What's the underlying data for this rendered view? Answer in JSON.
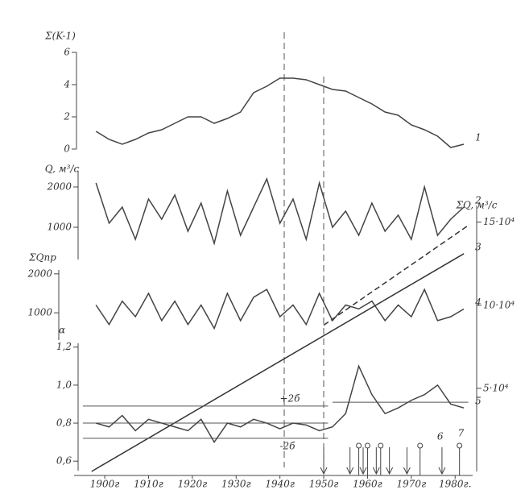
{
  "chart_data": [
    {
      "type": "line",
      "ylabel": "Σ(K-1)",
      "ylim": [
        0,
        6
      ],
      "yticks": [
        0,
        2,
        4,
        6
      ],
      "x": [
        1898,
        1901,
        1904,
        1907,
        1910,
        1913,
        1916,
        1919,
        1922,
        1925,
        1928,
        1931,
        1934,
        1937,
        1940,
        1943,
        1946,
        1949,
        1952,
        1955,
        1958,
        1961,
        1964,
        1967,
        1970,
        1973,
        1976,
        1979,
        1982
      ],
      "series": [
        {
          "name": "1",
          "color": "#444444",
          "values": [
            1.1,
            0.6,
            0.3,
            0.6,
            1.0,
            1.2,
            1.6,
            2.0,
            2.0,
            1.6,
            1.9,
            2.3,
            3.5,
            3.9,
            4.4,
            4.4,
            4.3,
            4.0,
            3.7,
            3.6,
            3.2,
            2.8,
            2.3,
            2.1,
            1.5,
            1.2,
            0.8,
            0.1,
            0.3
          ]
        }
      ]
    },
    {
      "type": "line",
      "ylabel": "Q, м³/с",
      "ylim": [
        200,
        2400
      ],
      "yticks": [
        1000,
        2000
      ],
      "x": [
        1898,
        1901,
        1904,
        1907,
        1910,
        1913,
        1916,
        1919,
        1922,
        1925,
        1928,
        1931,
        1934,
        1937,
        1940,
        1943,
        1946,
        1949,
        1952,
        1955,
        1958,
        1961,
        1964,
        1967,
        1970,
        1973,
        1976,
        1979,
        1982
      ],
      "series": [
        {
          "name": "2",
          "color": "#444444",
          "values": [
            2100,
            1100,
            1500,
            700,
            1700,
            1200,
            1800,
            900,
            1600,
            600,
            1900,
            800,
            1500,
            2200,
            1100,
            1700,
            700,
            2100,
            1000,
            1400,
            800,
            1600,
            900,
            1300,
            700,
            2000,
            800,
            1200,
            1500
          ]
        }
      ]
    },
    {
      "type": "line",
      "ylabel": "ΣQ, м³/с",
      "ylim": [
        0,
        160000
      ],
      "yticks": [
        {
          "value": 50000,
          "label": "5·10⁴"
        },
        {
          "value": 100000,
          "label": "10·10⁴"
        },
        {
          "value": 150000,
          "label": "15·10⁴"
        }
      ],
      "series": [
        {
          "name": "3",
          "color": "#333333",
          "x": [
            1897,
            1982
          ],
          "values": [
            0,
            131000
          ]
        },
        {
          "color": "#333333",
          "dashed": true,
          "x": [
            1950,
            1983
          ],
          "values": [
            88000,
            148000
          ]
        }
      ]
    },
    {
      "type": "line",
      "ylabel": "ΣQпр",
      "ylim": [
        300,
        2100
      ],
      "yticks": [
        1000,
        2000
      ],
      "x": [
        1898,
        1901,
        1904,
        1907,
        1910,
        1913,
        1916,
        1919,
        1922,
        1925,
        1928,
        1931,
        1934,
        1937,
        1940,
        1943,
        1946,
        1949,
        1952,
        1955,
        1958,
        1961,
        1964,
        1967,
        1970,
        1973,
        1976,
        1979,
        1982
      ],
      "series": [
        {
          "name": "4",
          "color": "#444444",
          "values": [
            1200,
            700,
            1300,
            900,
            1500,
            800,
            1300,
            700,
            1200,
            600,
            1500,
            800,
            1400,
            1600,
            900,
            1200,
            700,
            1500,
            800,
            1200,
            1100,
            1300,
            800,
            1200,
            900,
            1600,
            800,
            900,
            1100
          ]
        }
      ]
    },
    {
      "type": "line",
      "ylabel": "α",
      "ylim": [
        0.55,
        1.22
      ],
      "yticks": [
        {
          "value": 0.6,
          "label": "0,6"
        },
        {
          "value": 0.8,
          "label": "0,8"
        },
        {
          "value": 1.0,
          "label": "1,0"
        },
        {
          "value": 1.2,
          "label": "1,2"
        }
      ],
      "xlim": [
        1893,
        1984
      ],
      "xticks": [
        {
          "value": 1900,
          "label": "1900г"
        },
        {
          "value": 1910,
          "label": "1910г"
        },
        {
          "value": 1920,
          "label": "1920г"
        },
        {
          "value": 1930,
          "label": "1930г"
        },
        {
          "value": 1940,
          "label": "1940г"
        },
        {
          "value": 1950,
          "label": "1950г"
        },
        {
          "value": 1960,
          "label": "1960г"
        },
        {
          "value": 1970,
          "label": "1970г"
        },
        {
          "value": 1980,
          "label": "1980г."
        }
      ],
      "x": [
        1898,
        1901,
        1904,
        1907,
        1910,
        1913,
        1916,
        1919,
        1922,
        1925,
        1928,
        1931,
        1934,
        1937,
        1940,
        1943,
        1946,
        1949,
        1952,
        1955,
        1958,
        1961,
        1964,
        1967,
        1970,
        1973,
        1976,
        1979,
        1982
      ],
      "series": [
        {
          "name": "5",
          "color": "#444444",
          "values": [
            0.8,
            0.78,
            0.84,
            0.76,
            0.82,
            0.8,
            0.78,
            0.76,
            0.82,
            0.7,
            0.8,
            0.78,
            0.82,
            0.8,
            0.77,
            0.8,
            0.79,
            0.76,
            0.78,
            0.85,
            1.1,
            0.95,
            0.85,
            0.88,
            0.92,
            0.95,
            1.0,
            0.9,
            0.88
          ]
        }
      ],
      "hlines": [
        {
          "label": "+2б",
          "value": 0.89,
          "from": 1895,
          "to": 1951
        },
        {
          "value": 0.8,
          "from": 1895,
          "to": 1951
        },
        {
          "label": "-2б",
          "value": 0.72,
          "from": 1895,
          "to": 1951
        },
        {
          "value": 0.91,
          "from": 1952,
          "to": 1983
        }
      ],
      "arrows": {
        "label": "6",
        "x": [
          1950,
          1956,
          1959,
          1962,
          1965,
          1969,
          1977
        ]
      },
      "pins": {
        "label": "7",
        "x": [
          1958,
          1960,
          1963,
          1972,
          1981
        ]
      }
    }
  ]
}
